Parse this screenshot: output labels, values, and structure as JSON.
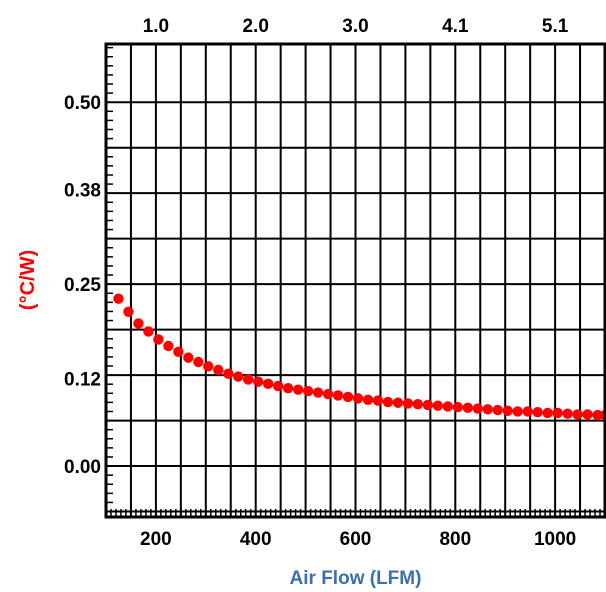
{
  "chart_data": {
    "type": "scatter",
    "xlabel": "Air Flow (LFM)",
    "ylabel": "(°C/W)",
    "xlim": [
      100,
      1100
    ],
    "ylim": [
      -0.07,
      0.58
    ],
    "x_ticks": [
      200,
      400,
      600,
      800,
      1000
    ],
    "x_tick_labels": [
      "200",
      "400",
      "600",
      "800",
      "1000"
    ],
    "y_ticks": [
      0.0,
      0.12,
      0.25,
      0.38,
      0.5
    ],
    "y_tick_labels": [
      "0.00",
      "0.12",
      "0.25",
      "0.38",
      "0.50"
    ],
    "top_axis_ticks": [
      200,
      400,
      600,
      800,
      1000
    ],
    "top_axis_labels": [
      "1.0",
      "2.0",
      "3.0",
      "4.1",
      "5.1"
    ],
    "grid": true,
    "colors": {
      "series": "#ff0000",
      "ylabel": "#ff0000",
      "xlabel": "#3b6fb0",
      "grid": "#000000"
    },
    "series": [
      {
        "x": [
          125,
          145,
          165,
          185,
          205,
          225,
          245,
          265,
          285,
          305,
          325,
          345,
          365,
          385,
          405,
          425,
          445,
          465,
          485,
          505,
          525,
          545,
          565,
          585,
          605,
          625,
          645,
          665,
          685,
          705,
          725,
          745,
          765,
          785,
          805,
          825,
          845,
          865,
          885,
          905,
          925,
          945,
          965,
          985,
          1005,
          1025,
          1045,
          1065,
          1085,
          1100
        ],
        "values": [
          0.23,
          0.212,
          0.196,
          0.185,
          0.174,
          0.165,
          0.157,
          0.149,
          0.143,
          0.137,
          0.132,
          0.127,
          0.123,
          0.119,
          0.116,
          0.113,
          0.11,
          0.107,
          0.105,
          0.103,
          0.101,
          0.099,
          0.097,
          0.095,
          0.093,
          0.091,
          0.09,
          0.088,
          0.087,
          0.086,
          0.085,
          0.084,
          0.083,
          0.082,
          0.081,
          0.08,
          0.079,
          0.078,
          0.077,
          0.076,
          0.075,
          0.075,
          0.074,
          0.073,
          0.073,
          0.072,
          0.071,
          0.071,
          0.07,
          0.07
        ]
      }
    ]
  }
}
